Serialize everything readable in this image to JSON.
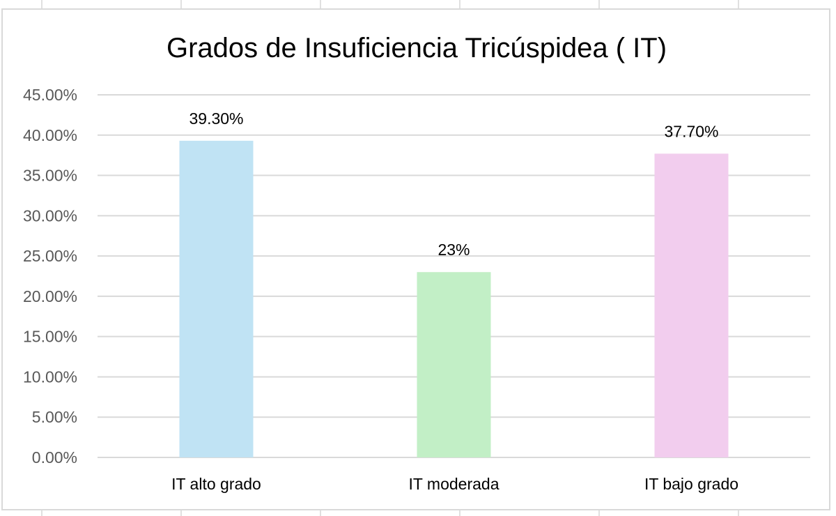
{
  "chart_data": {
    "type": "bar",
    "title": "Grados de Insuficiencia Tricúspidea ( IT)",
    "categories": [
      "IT alto grado",
      "IT moderada",
      "IT bajo grado"
    ],
    "values": [
      39.3,
      23,
      37.7
    ],
    "data_labels": [
      "39.30%",
      "23%",
      "37.70%"
    ],
    "bar_colors": [
      "#c0e3f4",
      "#c2efc6",
      "#f2cdee"
    ],
    "ylim": [
      0,
      45
    ],
    "yticks": [
      0,
      5,
      10,
      15,
      20,
      25,
      30,
      35,
      40,
      45
    ],
    "ytick_labels": [
      "0.00%",
      "5.00%",
      "10.00%",
      "15.00%",
      "20.00%",
      "25.00%",
      "30.00%",
      "35.00%",
      "40.00%",
      "45.00%"
    ],
    "xlabel": "",
    "ylabel": "",
    "grid": true,
    "legend": false,
    "gridline_color": "#d9d9d9"
  }
}
